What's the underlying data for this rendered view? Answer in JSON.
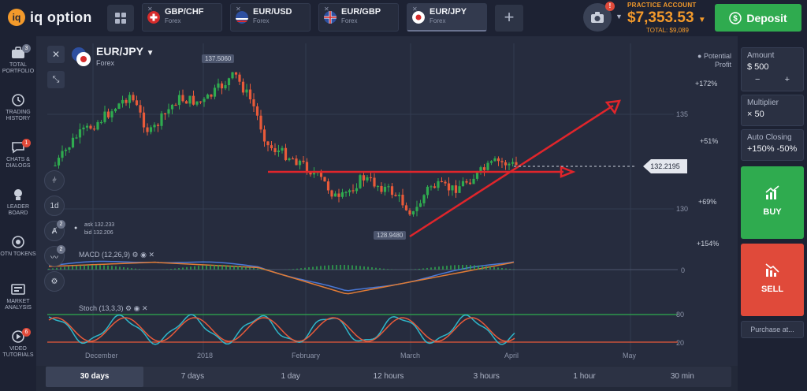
{
  "app": {
    "logo_text": "iq option",
    "logo_mark": "iq"
  },
  "tabs": [
    {
      "pair": "GBP/CHF",
      "type": "Forex"
    },
    {
      "pair": "EUR/USD",
      "type": "Forex"
    },
    {
      "pair": "EUR/GBP",
      "type": "Forex"
    },
    {
      "pair": "EUR/JPY",
      "type": "Forex"
    }
  ],
  "account": {
    "label": "PRACTICE ACCOUNT",
    "balance": "$7,353.53",
    "total": "TOTAL: $9,089",
    "notification_count": "!"
  },
  "deposit_label": "Deposit",
  "left_nav": [
    {
      "label": "TOTAL PORTFOLIO",
      "badge": "3"
    },
    {
      "label": "TRADING HISTORY",
      "badge": ""
    },
    {
      "label": "CHATS & DIALOGS",
      "badge": "1"
    },
    {
      "label": "LEADER BOARD",
      "badge": ""
    },
    {
      "label": "OTN TOKENS",
      "badge": ""
    },
    {
      "label": "MARKET ANALYSIS",
      "badge": ""
    },
    {
      "label": "VIDEO TUTORIALS",
      "badge": "6"
    }
  ],
  "asset": {
    "pair": "EUR/JPY",
    "type": "Forex"
  },
  "chart": {
    "ask": "ask 132.233",
    "bid": "bid 132.206",
    "high_label": "137.5060",
    "low_label": "128.9480",
    "current_price": "132.2195",
    "potential_profit": "Potential Profit",
    "profit_levels": [
      "+172%",
      "+51%",
      "+69%",
      "+154%"
    ],
    "price_ticks": [
      "135",
      "130"
    ],
    "macd_label": "MACD (12,26,9)",
    "macd_zero": "0",
    "stoch_label": "Stoch (13,3,3)",
    "stoch_levels": [
      "80",
      "20"
    ],
    "x_labels": [
      "December",
      "2018",
      "February",
      "March",
      "April",
      "May"
    ],
    "tool_labels": [
      "1d",
      "2",
      "2"
    ]
  },
  "chart_data": {
    "type": "candlestick",
    "title": "EUR/JPY",
    "ylim": [
      128,
      139
    ],
    "high": 137.506,
    "low": 128.948,
    "current": 132.2195,
    "x_labels": [
      "December",
      "2018",
      "February",
      "March",
      "April",
      "May"
    ]
  },
  "right_panel": {
    "amount_label": "Amount",
    "amount_value": "$ 500",
    "minus": "−",
    "plus": "+",
    "multiplier_label": "Multiplier",
    "multiplier_value": "× 50",
    "auto_closing_label": "Auto Closing",
    "auto_closing_value": "+150% -50%",
    "buy_label": "BUY",
    "sell_label": "SELL",
    "purchase_label": "Purchase at..."
  },
  "timeframes": [
    "30 days",
    "7 days",
    "1 day",
    "12 hours",
    "3 hours",
    "1 hour",
    "30 min"
  ],
  "colors": {
    "up": "#2fab4f",
    "down": "#e85a3a",
    "macd": "#4a78d6",
    "signal": "#e07b35",
    "stoch_k": "#2fb6c9",
    "stoch_d": "#e85a3a",
    "trend": "#e0252b",
    "deposit": "#2fab4f",
    "accent": "#f39a2b"
  }
}
